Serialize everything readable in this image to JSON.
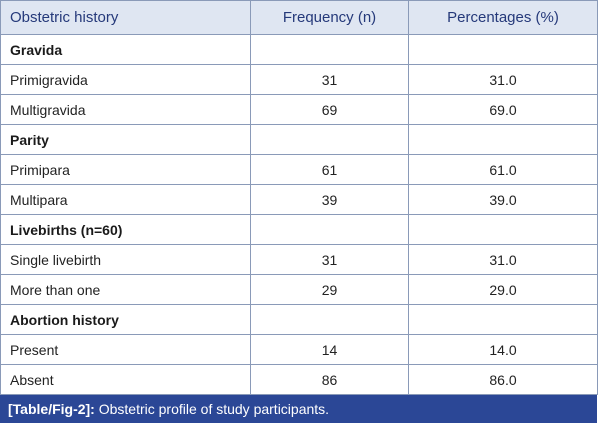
{
  "table": {
    "headers": [
      "Obstetric history",
      "Frequency (n)",
      "Percentages (%)"
    ],
    "sections": [
      {
        "title": "Gravida",
        "rows": [
          {
            "label": "Primigravida",
            "frequency": "31",
            "percentage": "31.0"
          },
          {
            "label": "Multigravida",
            "frequency": "69",
            "percentage": "69.0"
          }
        ]
      },
      {
        "title": "Parity",
        "rows": [
          {
            "label": "Primipara",
            "frequency": "61",
            "percentage": "61.0"
          },
          {
            "label": "Multipara",
            "frequency": "39",
            "percentage": "39.0"
          }
        ]
      },
      {
        "title": "Livebirths (n=60)",
        "rows": [
          {
            "label": "Single livebirth",
            "frequency": "31",
            "percentage": "31.0"
          },
          {
            "label": "More than one",
            "frequency": "29",
            "percentage": "29.0"
          }
        ]
      },
      {
        "title": "Abortion history",
        "rows": [
          {
            "label": "Present",
            "frequency": "14",
            "percentage": "14.0"
          },
          {
            "label": "Absent",
            "frequency": "86",
            "percentage": "86.0"
          }
        ]
      }
    ]
  },
  "caption": {
    "ref": "[Table/Fig-2]:",
    "text": " Obstetric profile of study participants."
  },
  "colors": {
    "header_bg": "#dfe6f2",
    "header_text": "#25397a",
    "border": "#8a9ab8",
    "caption_bg": "#2b4796",
    "caption_text": "#ffffff"
  }
}
